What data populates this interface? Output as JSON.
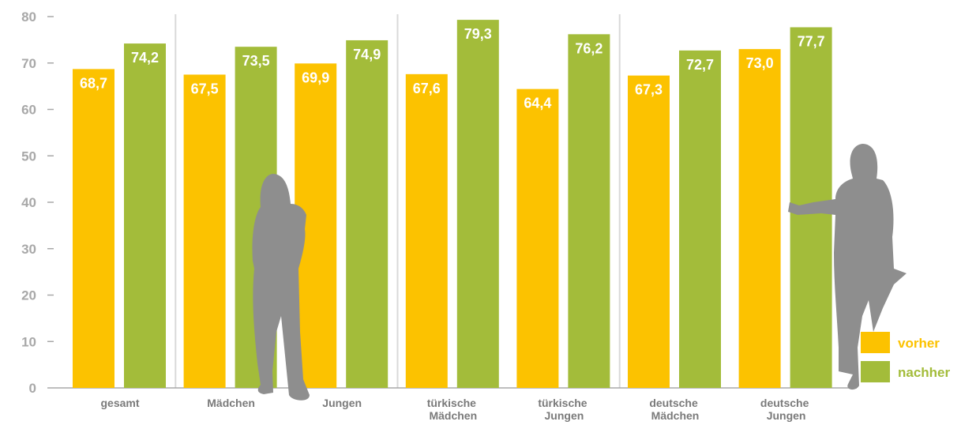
{
  "chart_data": {
    "type": "bar",
    "categories": [
      "gesamt",
      "Mädchen",
      "Jungen",
      "türkische Mädchen",
      "türkische Jungen",
      "deutsche Mädchen",
      "deutsche Jungen"
    ],
    "series": [
      {
        "name": "vorher",
        "color": "#fcc200",
        "values": [
          68.7,
          67.5,
          69.9,
          67.6,
          64.4,
          67.3,
          73.0
        ],
        "value_labels": [
          "68,7",
          "67,5",
          "69,9",
          "67,6",
          "64,4",
          "67,3",
          "73,0"
        ]
      },
      {
        "name": "nachher",
        "color": "#a3bc3a",
        "values": [
          74.2,
          73.5,
          74.9,
          79.3,
          76.2,
          72.7,
          77.7
        ],
        "value_labels": [
          "74,2",
          "73,5",
          "74,9",
          "79,3",
          "76,2",
          "72,7",
          "77,7"
        ]
      }
    ],
    "ylim": [
      0,
      80
    ],
    "yticks": [
      0,
      10,
      20,
      30,
      40,
      50,
      60,
      70,
      80
    ],
    "grid": false,
    "legend": "lower right"
  }
}
